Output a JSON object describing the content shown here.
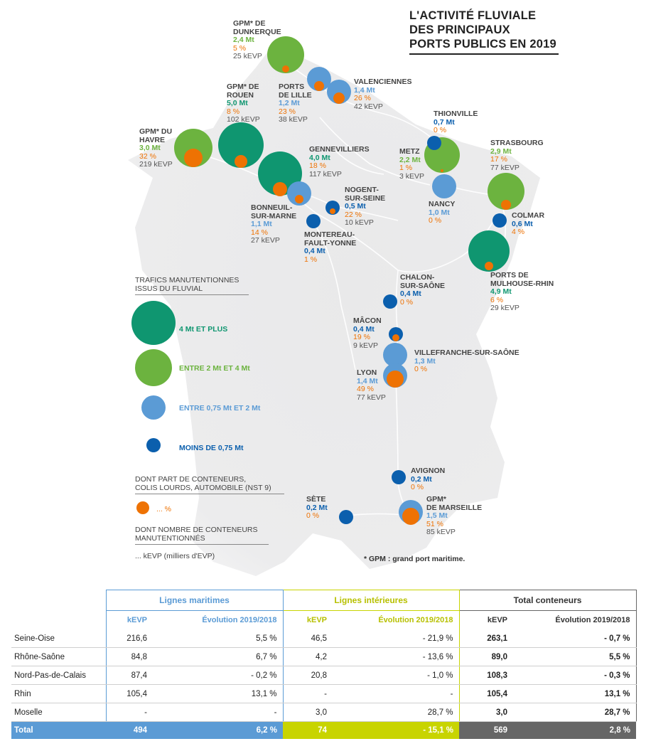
{
  "title": [
    "L'ACTIVITÉ FLUVIALE",
    "DES PRINCIPAUX",
    "PORTS PUBLICS EN 2019"
  ],
  "colors": {
    "green": "#6cb33f",
    "teal": "#0f9670",
    "light_blue": "#5b9bd5",
    "dark_blue": "#0b5fad",
    "orange": "#ee7203"
  },
  "ports": [
    {
      "id": "dunkerque",
      "name": [
        "GPM* DE",
        "DUNKERQUE"
      ],
      "traffic": "2,4 Mt",
      "share": "5 %",
      "kevp": "25 kEVP",
      "class": "green"
    },
    {
      "id": "lille",
      "name": [
        "PORTS",
        "DE LILLE"
      ],
      "traffic": "1,2 Mt",
      "share": "23 %",
      "kevp": "38 kEVP",
      "class": "light"
    },
    {
      "id": "valenciennes",
      "name": [
        "VALENCIENNES"
      ],
      "traffic": "1,4 Mt",
      "share": "26 %",
      "kevp": "42 kEVP",
      "class": "light"
    },
    {
      "id": "rouen",
      "name": [
        "GPM* DE",
        "ROUEN"
      ],
      "traffic": "5,0 Mt",
      "share": "8 %",
      "kevp": "102 kEVP",
      "class": "teal"
    },
    {
      "id": "havre",
      "name": [
        "GPM* DU",
        "HAVRE"
      ],
      "traffic": "3,0 Mt",
      "share": "32 %",
      "kevp": "219 kEVP",
      "class": "green"
    },
    {
      "id": "gennevilliers",
      "name": [
        "GENNEVILLIERS"
      ],
      "traffic": "4,0 Mt",
      "share": "18 %",
      "kevp": "117 kEVP",
      "class": "teal"
    },
    {
      "id": "bonneuil",
      "name": [
        "BONNEUIL-",
        "SUR-MARNE"
      ],
      "traffic": "1,1 Mt",
      "share": "14 %",
      "kevp": "27 kEVP",
      "class": "light"
    },
    {
      "id": "nogent",
      "name": [
        "NOGENT-",
        "SUR-SEINE"
      ],
      "traffic": "0,5 Mt",
      "share": "22 %",
      "kevp": "10 kEVP",
      "class": "dark"
    },
    {
      "id": "montereau",
      "name": [
        "MONTEREAU-",
        "FAULT-YONNE"
      ],
      "traffic": "0,4 Mt",
      "share": "1 %",
      "kevp": "",
      "class": "dark"
    },
    {
      "id": "thionville",
      "name": [
        "THIONVILLE"
      ],
      "traffic": "0,7 Mt",
      "share": "0 %",
      "kevp": "",
      "class": "dark"
    },
    {
      "id": "metz",
      "name": [
        "METZ"
      ],
      "traffic": "2,2 Mt",
      "share": "1 %",
      "kevp": "3 kEVP",
      "class": "green"
    },
    {
      "id": "nancy",
      "name": [
        "NANCY"
      ],
      "traffic": "1,0 Mt",
      "share": "0 %",
      "kevp": "",
      "class": "light"
    },
    {
      "id": "strasbourg",
      "name": [
        "STRASBOURG"
      ],
      "traffic": "2,9 Mt",
      "share": "17 %",
      "kevp": "77 kEVP",
      "class": "green"
    },
    {
      "id": "colmar",
      "name": [
        "COLMAR"
      ],
      "traffic": "0,6 Mt",
      "share": "4 %",
      "kevp": "",
      "class": "dark"
    },
    {
      "id": "mulhouse",
      "name": [
        "PORTS DE",
        "MULHOUSE-RHIN"
      ],
      "traffic": "4,9 Mt",
      "share": "6 %",
      "kevp": "29 kEVP",
      "class": "teal"
    },
    {
      "id": "chalon",
      "name": [
        "CHALON-",
        "SUR-SAÔNE"
      ],
      "traffic": "0,4 Mt",
      "share": "0 %",
      "kevp": "",
      "class": "dark"
    },
    {
      "id": "macon",
      "name": [
        "MÂCON"
      ],
      "traffic": "0,4 Mt",
      "share": "19 %",
      "kevp": "9 kEVP",
      "class": "dark"
    },
    {
      "id": "villefranche",
      "name": [
        "VILLEFRANCHE-SUR-SAÔNE"
      ],
      "traffic": "1,3 Mt",
      "share": "0 %",
      "kevp": "",
      "class": "light"
    },
    {
      "id": "lyon",
      "name": [
        "LYON"
      ],
      "traffic": "1,4 Mt",
      "share": "49 %",
      "kevp": "77 kEVP",
      "class": "light"
    },
    {
      "id": "avignon",
      "name": [
        "AVIGNON"
      ],
      "traffic": "0,2 Mt",
      "share": "0 %",
      "kevp": "",
      "class": "dark"
    },
    {
      "id": "sete",
      "name": [
        "SÈTE"
      ],
      "traffic": "0,2 Mt",
      "share": "0 %",
      "kevp": "",
      "class": "dark"
    },
    {
      "id": "marseille",
      "name": [
        "GPM*",
        "DE MARSEILLE"
      ],
      "traffic": "1,5 Mt",
      "share": "51 %",
      "kevp": "85 kEVP",
      "class": "light"
    }
  ],
  "legend": {
    "heading": [
      "TRAFICS MANUTENTIONNES",
      "ISSUS DU FLUVIAL"
    ],
    "classes": [
      {
        "label": "4 Mt ET PLUS",
        "class": "teal"
      },
      {
        "label": "ENTRE 2 Mt ET 4 Mt",
        "class": "green"
      },
      {
        "label": "ENTRE 0,75 Mt ET 2 Mt",
        "class": "light"
      },
      {
        "label": "MOINS DE 0,75 Mt",
        "class": "dark"
      }
    ],
    "containers_heading": [
      "DONT PART DE CONTENEURS,",
      "COLIS LOURDS, AUTOMOBILE (NST 9)"
    ],
    "containers_label": "... %",
    "kevp_heading": [
      "DONT NOMBRE DE CONTENEURS",
      "MANUTENTIONNÉS"
    ],
    "kevp_label": "... kEVP (milliers d'EVP)"
  },
  "footnote": "* GPM : grand port maritime.",
  "table": {
    "groups": [
      "Lignes maritimes",
      "Lignes intérieures",
      "Total conteneurs"
    ],
    "subheaders": [
      "kEVP",
      "Évolution 2019/2018",
      "kEVP",
      "Évolution 2019/2018",
      "kEVP",
      "Évolution 2019/2018"
    ],
    "rows": [
      {
        "name": "Seine-Oise",
        "cells": [
          "216,6",
          "5,5 %",
          "46,5",
          "- 21,9 %",
          "263,1",
          "- 0,7 %"
        ]
      },
      {
        "name": "Rhône-Saône",
        "cells": [
          "84,8",
          "6,7 %",
          "4,2",
          "- 13,6 %",
          "89,0",
          "5,5 %"
        ]
      },
      {
        "name": "Nord-Pas-de-Calais",
        "cells": [
          "87,4",
          "- 0,2 %",
          "20,8",
          "- 1,0 %",
          "108,3",
          "- 0,3 %"
        ]
      },
      {
        "name": "Rhin",
        "cells": [
          "105,4",
          "13,1 %",
          "-",
          "-",
          "105,4",
          "13,1 %"
        ]
      },
      {
        "name": "Moselle",
        "cells": [
          "-",
          "-",
          "3,0",
          "28,7 %",
          "3,0",
          "28,7 %"
        ]
      }
    ],
    "total": {
      "name": "Total",
      "cells": [
        "494",
        "6,2 %",
        "74",
        "- 15,1 %",
        "569",
        "2,8 %"
      ]
    }
  }
}
